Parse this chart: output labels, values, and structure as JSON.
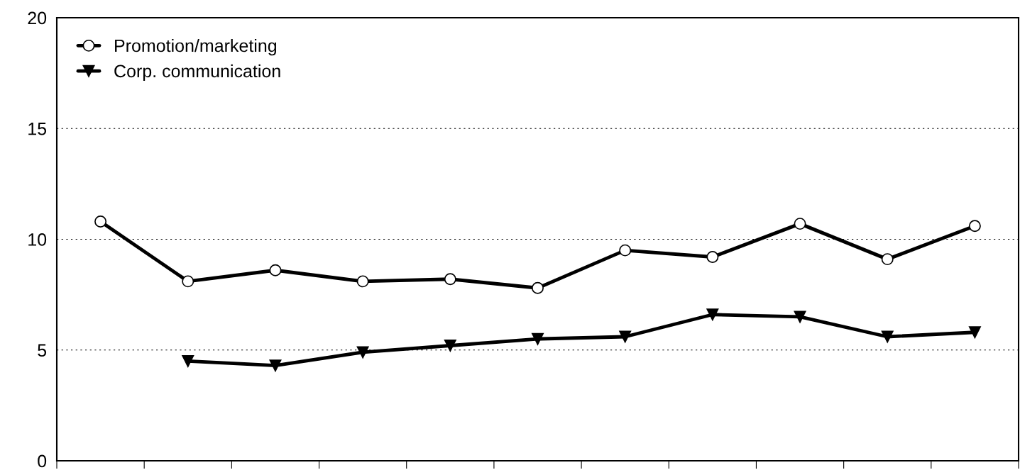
{
  "chart_data": {
    "type": "line",
    "categories": [
      null,
      null,
      null,
      null,
      null,
      null,
      null,
      null,
      null,
      null,
      null
    ],
    "series": [
      {
        "name": "Promotion/marketing",
        "color": "#000000",
        "marker": "circle",
        "values": [
          10.8,
          8.1,
          8.6,
          8.1,
          8.2,
          7.8,
          9.5,
          9.2,
          10.7,
          9.1,
          10.6
        ]
      },
      {
        "name": "Corp. communication",
        "color": "#000000",
        "marker": "triangle",
        "values": [
          null,
          4.5,
          4.3,
          4.9,
          5.2,
          5.5,
          5.6,
          6.6,
          6.5,
          5.6,
          5.8
        ]
      }
    ],
    "ylim": [
      0,
      20
    ],
    "yticks": [
      0,
      5,
      10,
      15,
      20
    ],
    "grid": "y",
    "legend": "top left",
    "line_style": "solid"
  }
}
